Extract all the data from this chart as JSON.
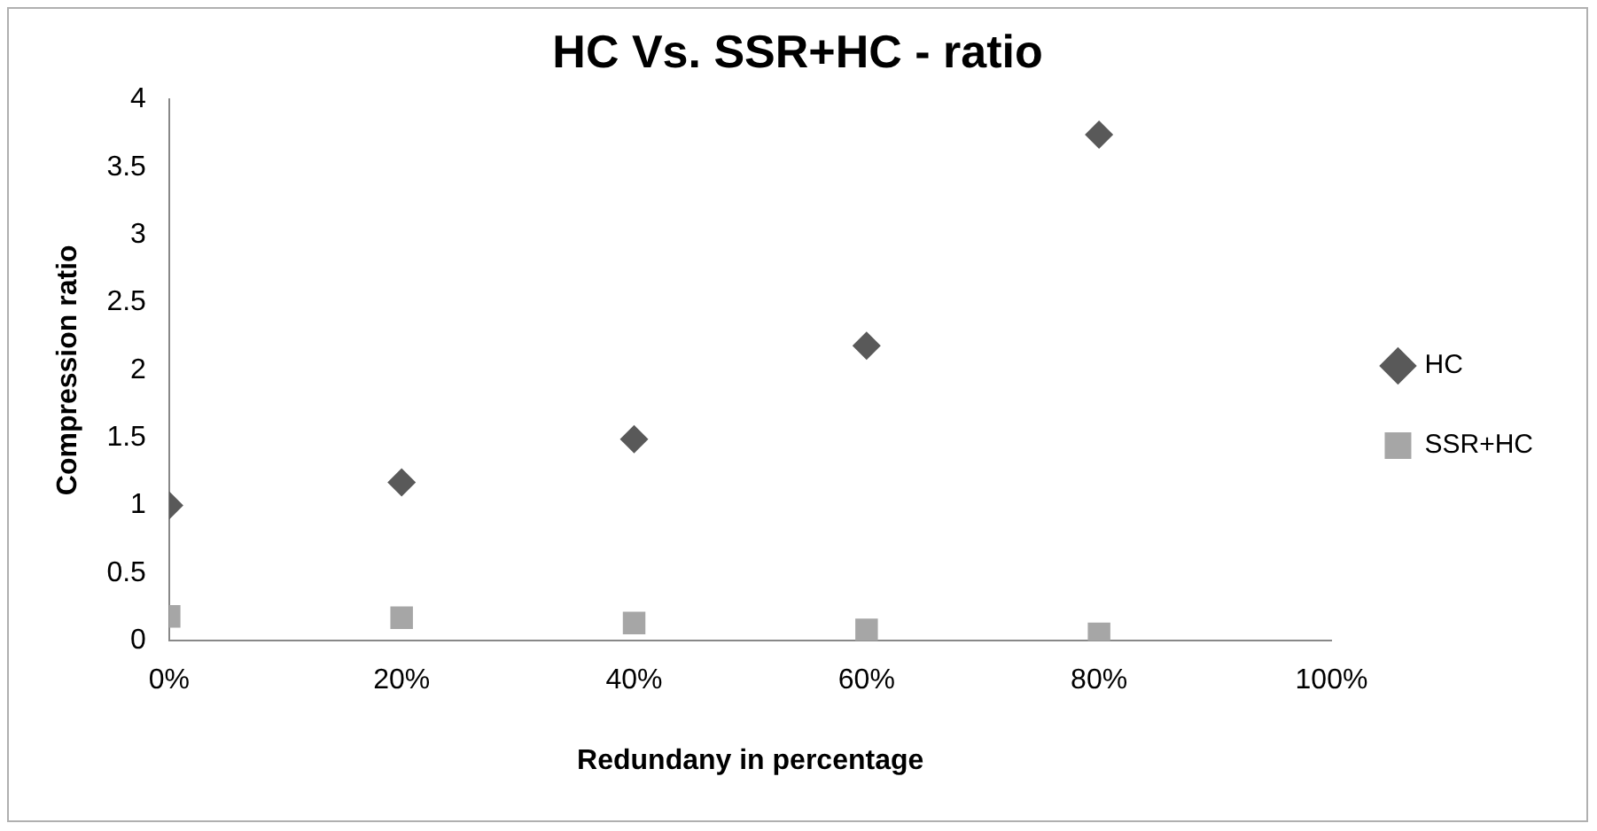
{
  "chart_data": {
    "type": "scatter",
    "title": "HC Vs. SSR+HC - ratio",
    "xlabel": "Redundany in percentage",
    "ylabel": "Compression ratio",
    "x": [
      0,
      0.2,
      0.4,
      0.6,
      0.8
    ],
    "series": [
      {
        "name": "HC",
        "color": "#595959",
        "marker": "diamond",
        "values": [
          1.0,
          1.17,
          1.49,
          2.18,
          3.74
        ]
      },
      {
        "name": "SSR+HC",
        "color": "#a6a6a6",
        "marker": "square",
        "values": [
          0.18,
          0.17,
          0.13,
          0.08,
          0.05
        ]
      }
    ],
    "xlim": [
      0,
      1
    ],
    "xticks": [
      {
        "value": 0,
        "label": "0%"
      },
      {
        "value": 0.2,
        "label": "20%"
      },
      {
        "value": 0.4,
        "label": "40%"
      },
      {
        "value": 0.6,
        "label": "60%"
      },
      {
        "value": 0.8,
        "label": "80%"
      },
      {
        "value": 1,
        "label": "100%"
      }
    ],
    "ylim": [
      0,
      4
    ],
    "yticks": [
      0,
      0.5,
      1,
      1.5,
      2,
      2.5,
      3,
      3.5,
      4
    ],
    "grid": false,
    "legend": "right"
  }
}
